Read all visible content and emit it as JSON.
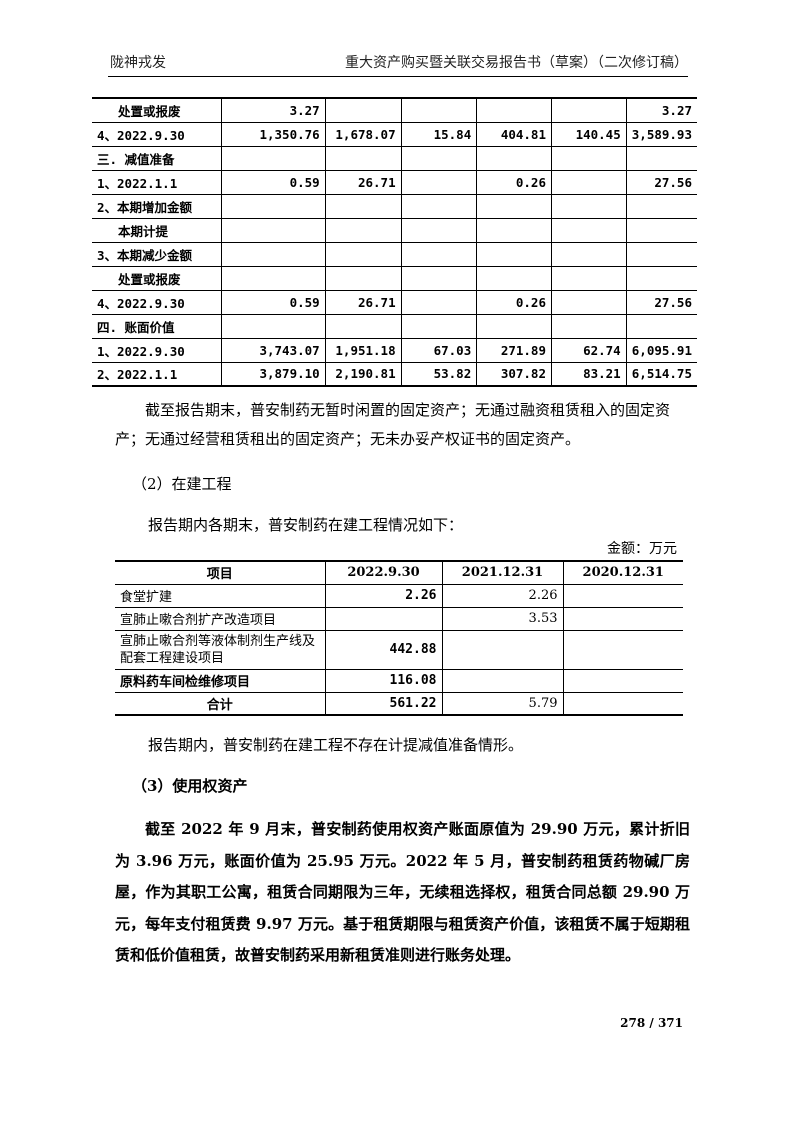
{
  "header": {
    "left": "陇神戎发",
    "right": "重大资产购买暨关联交易报告书（草案）（二次修订稿）"
  },
  "table1": {
    "rows": [
      {
        "label": "处置或报废",
        "indent": true,
        "values": [
          "3.27",
          "",
          "",
          "",
          "",
          "3.27"
        ]
      },
      {
        "label": "4、2022.9.30",
        "values": [
          "1,350.76",
          "1,678.07",
          "15.84",
          "404.81",
          "140.45",
          "3,589.93"
        ]
      },
      {
        "label": "三. 减值准备",
        "values": [
          "",
          "",
          "",
          "",
          "",
          ""
        ]
      },
      {
        "label": "1、2022.1.1",
        "values": [
          "0.59",
          "26.71",
          "",
          "0.26",
          "",
          "27.56"
        ]
      },
      {
        "label": "2、本期增加金额",
        "values": [
          "",
          "",
          "",
          "",
          "",
          ""
        ]
      },
      {
        "label": "本期计提",
        "indent": true,
        "values": [
          "",
          "",
          "",
          "",
          "",
          ""
        ]
      },
      {
        "label": "3、本期减少金额",
        "values": [
          "",
          "",
          "",
          "",
          "",
          ""
        ]
      },
      {
        "label": "处置或报废",
        "indent": true,
        "values": [
          "",
          "",
          "",
          "",
          "",
          ""
        ]
      },
      {
        "label": "4、2022.9.30",
        "values": [
          "0.59",
          "26.71",
          "",
          "0.26",
          "",
          "27.56"
        ]
      },
      {
        "label": "四. 账面价值",
        "values": [
          "",
          "",
          "",
          "",
          "",
          ""
        ]
      },
      {
        "label": "1、2022.9.30",
        "values": [
          "3,743.07",
          "1,951.18",
          "67.03",
          "271.89",
          "62.74",
          "6,095.91"
        ]
      },
      {
        "label": "2、2022.1.1",
        "values": [
          "3,879.10",
          "2,190.81",
          "53.82",
          "307.82",
          "83.21",
          "6,514.75"
        ]
      }
    ]
  },
  "para1": "截至报告期末，普安制药无暂时闲置的固定资产；无通过融资租赁租入的固定资产；无通过经营租赁租出的固定资产；无未办妥产权证书的固定资产。",
  "section2": "（2）在建工程",
  "para2": "报告期内各期末，普安制药在建工程情况如下：",
  "unit": "金额：万元",
  "table2": {
    "headers": [
      "项目",
      "2022.9.30",
      "2021.12.31",
      "2020.12.31"
    ],
    "rows": [
      {
        "item": "食堂扩建",
        "v1": "2.26",
        "v2": "2.26",
        "v3": ""
      },
      {
        "item": "宣肺止嗽合剂扩产改造项目",
        "v1": "",
        "v2": "3.53",
        "v3": ""
      },
      {
        "item": "宣肺止嗽合剂等液体制剂生产线及配套工程建设项目",
        "v1": "442.88",
        "v2": "",
        "v3": ""
      },
      {
        "item": "原料药车间检维修项目",
        "v1": "116.08",
        "v2": "",
        "v3": ""
      }
    ],
    "total": {
      "item": "合计",
      "v1": "561.22",
      "v2": "5.79",
      "v3": ""
    }
  },
  "para3": "报告期内，普安制药在建工程不存在计提减值准备情形。",
  "section3": "（3）使用权资产",
  "para4": "截至 2022 年 9 月末，普安制药使用权资产账面原值为 29.90 万元，累计折旧为 3.96 万元，账面价值为 25.95 万元。2022 年 5 月，普安制药租赁药物碱厂房屋，作为其职工公寓，租赁合同期限为三年，无续租选择权，租赁合同总额 29.90 万元，每年支付租赁费 9.97 万元。基于租赁期限与租赁资产价值，该租赁不属于短期租赁和低价值租赁，故普安制药采用新租赁准则进行账务处理。",
  "page_number": "278 / 371"
}
